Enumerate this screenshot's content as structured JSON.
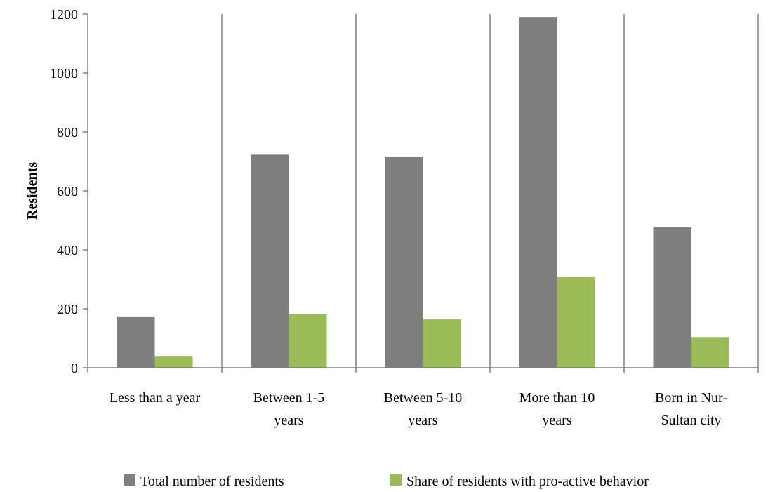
{
  "chart_data": {
    "type": "bar",
    "title": "",
    "xlabel": "",
    "ylabel": "Residents",
    "ylim": [
      0,
      1200
    ],
    "yticks": [
      0,
      200,
      400,
      600,
      800,
      1000,
      1200
    ],
    "categories": [
      [
        "Less than a year"
      ],
      [
        "Between 1-5",
        "years"
      ],
      [
        "Between 5-10",
        "years"
      ],
      [
        "More than 10",
        "years"
      ],
      [
        "Born in Nur-",
        "Sultan city"
      ]
    ],
    "series": [
      {
        "name": "Total number of residents",
        "color": "#7f7f7f",
        "values": [
          174,
          723,
          716,
          1190,
          477
        ]
      },
      {
        "name": "Share of residents with pro-active behavior",
        "color": "#9bbb59",
        "values": [
          40,
          181,
          164,
          309,
          104
        ]
      }
    ],
    "grid": "vertical category separators",
    "legend_position": "bottom"
  }
}
